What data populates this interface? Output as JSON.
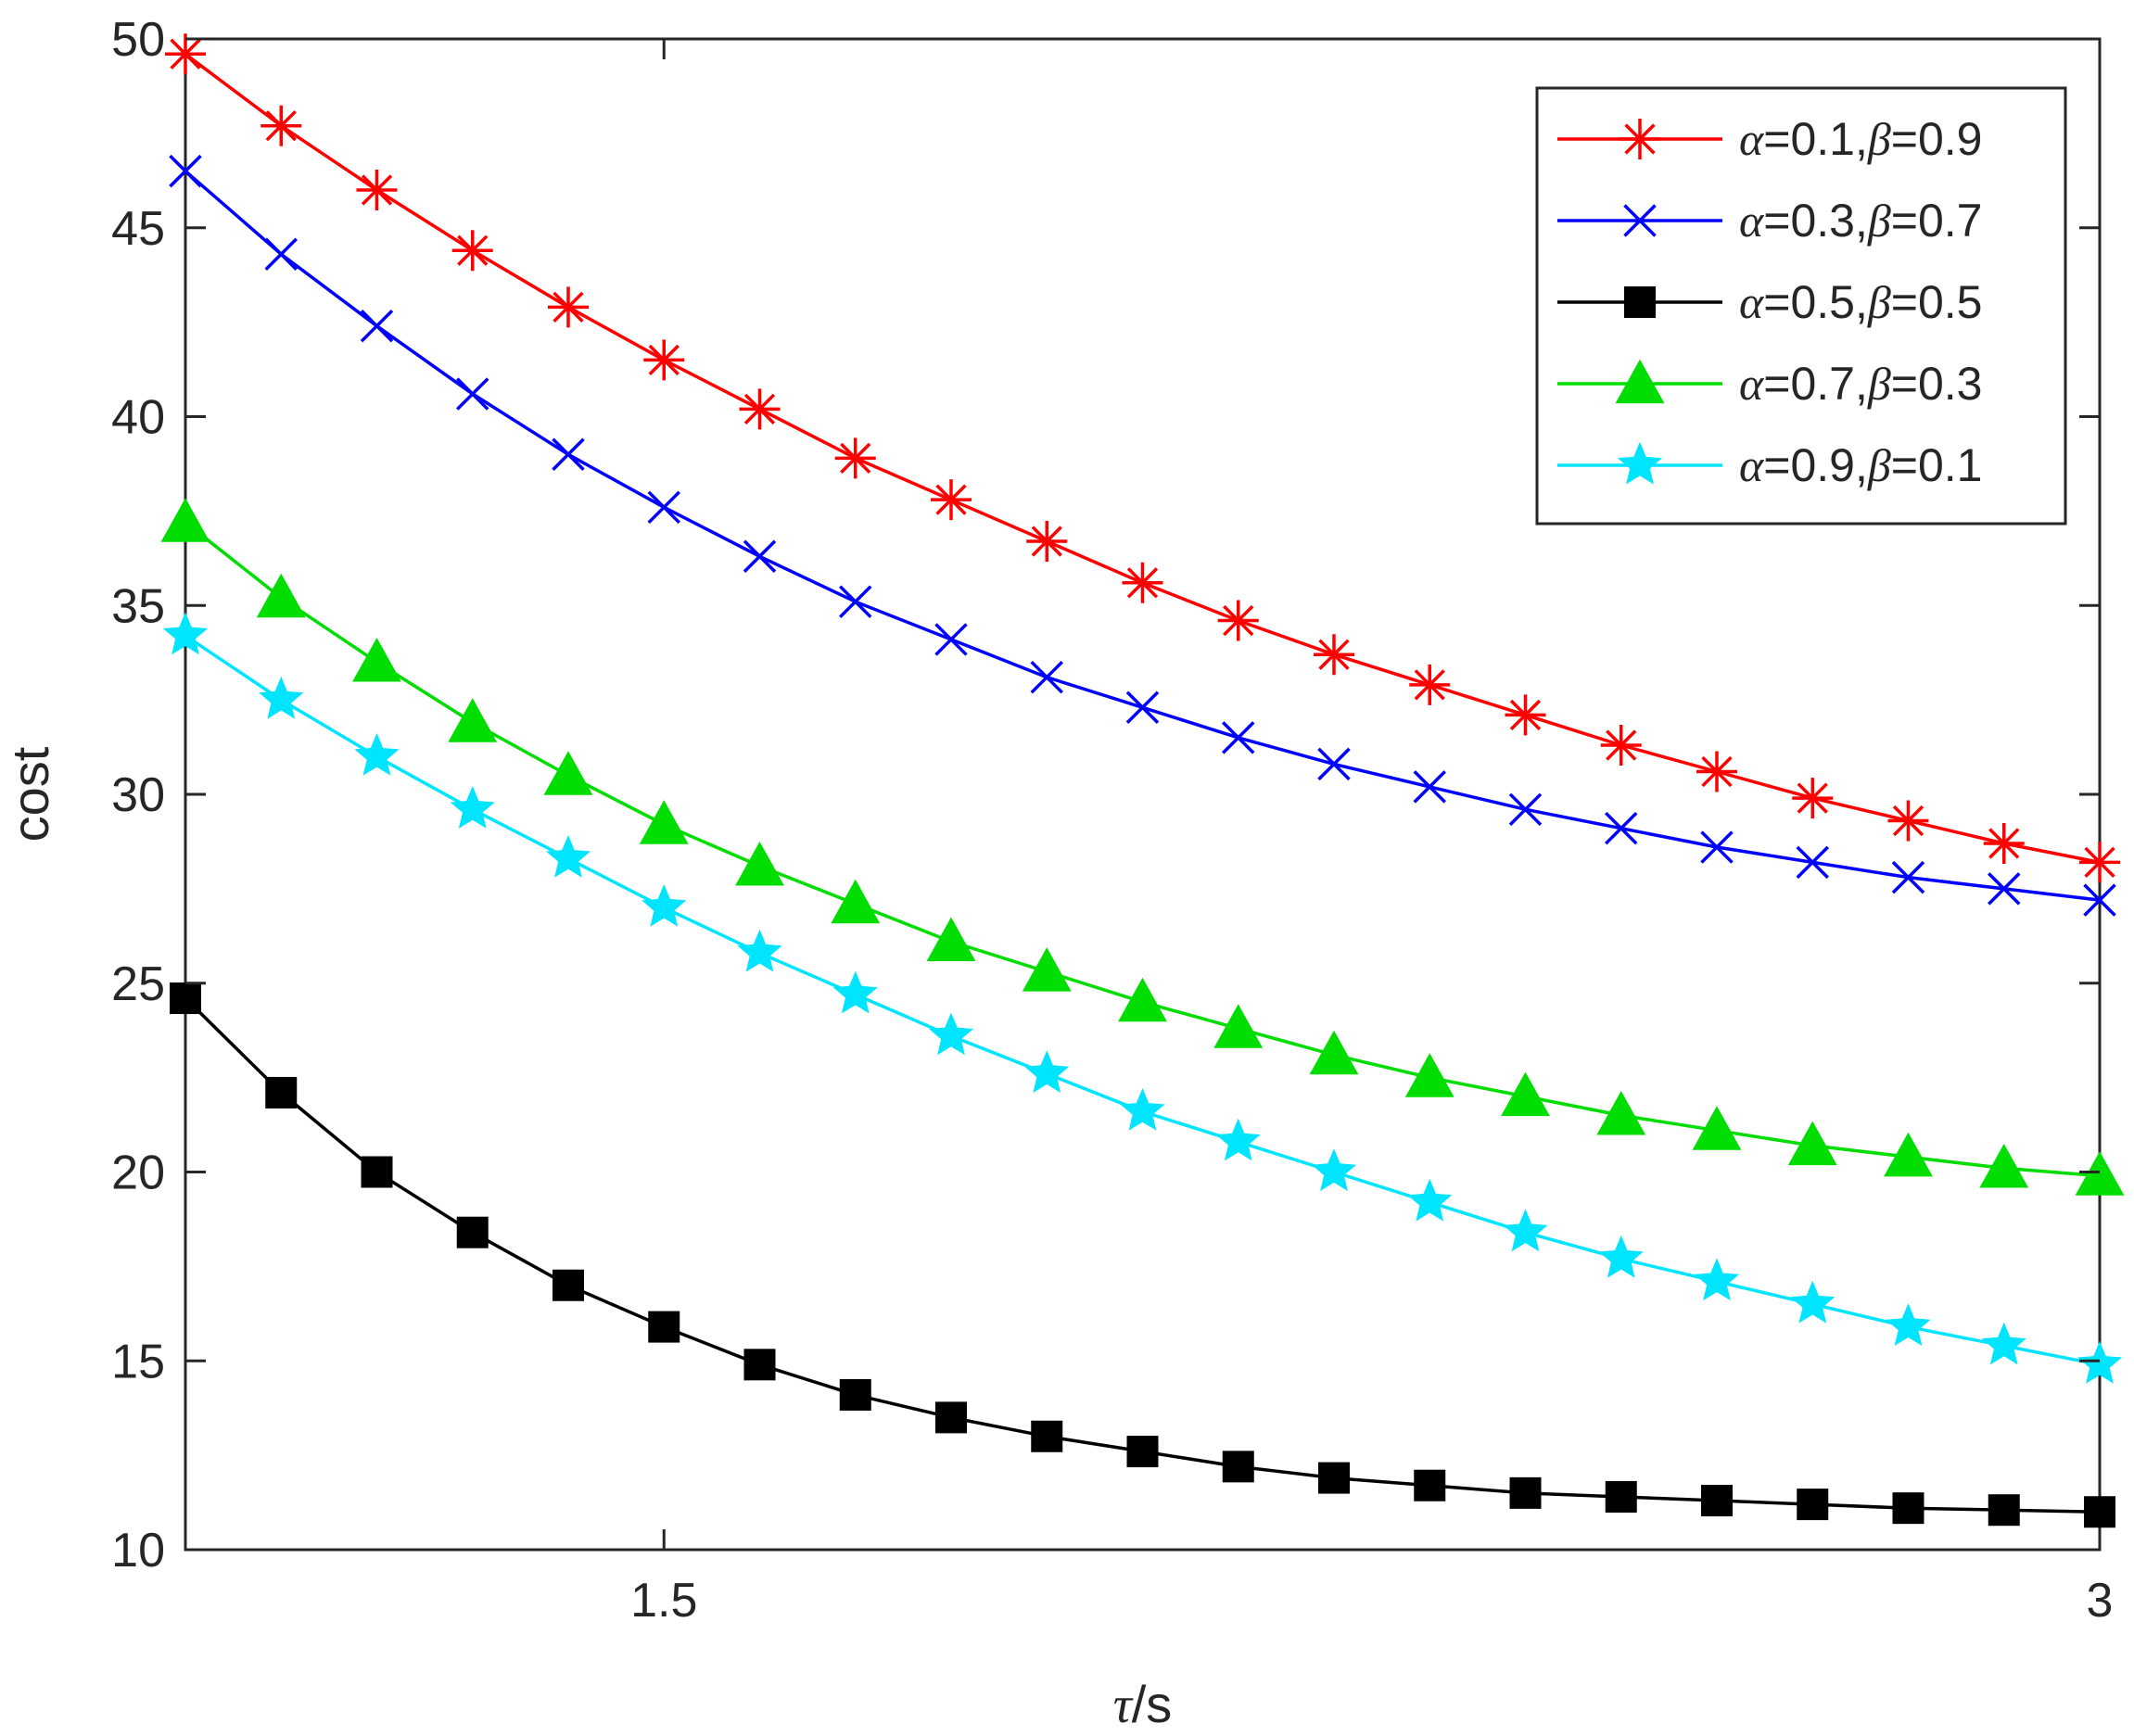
{
  "chart_data": {
    "type": "line",
    "xlabel_symbol": "τ",
    "xlabel_unit": "/s",
    "ylabel": "cost",
    "x": [
      1.0,
      1.1,
      1.2,
      1.3,
      1.4,
      1.5,
      1.6,
      1.7,
      1.8,
      1.9,
      2.0,
      2.1,
      2.2,
      2.3,
      2.4,
      2.5,
      2.6,
      2.7,
      2.8,
      2.9,
      3.0
    ],
    "xlim": [
      1.0,
      3.0
    ],
    "ylim": [
      10,
      50
    ],
    "xticks": [
      1.5,
      3
    ],
    "xtick_labels": [
      "1.5",
      "3"
    ],
    "yticks": [
      10,
      15,
      20,
      25,
      30,
      35,
      40,
      45,
      50
    ],
    "ytick_labels": [
      "10",
      "15",
      "20",
      "25",
      "30",
      "35",
      "40",
      "45",
      "50"
    ],
    "grid": false,
    "legend_position": "top-right",
    "series": [
      {
        "name": "α=0.1,β=0.9",
        "alpha_label": "=0.1,",
        "beta_label": "=0.9",
        "color": "#ff0000",
        "marker": "asterisk",
        "values": [
          49.6,
          47.7,
          46.0,
          44.4,
          42.9,
          41.5,
          40.2,
          38.9,
          37.8,
          36.7,
          35.6,
          34.6,
          33.7,
          32.9,
          32.1,
          31.3,
          30.6,
          29.9,
          29.3,
          28.7,
          28.2
        ]
      },
      {
        "name": "α=0.3,β=0.7",
        "alpha_label": "=0.3,",
        "beta_label": "=0.7",
        "color": "#0000ff",
        "marker": "x",
        "values": [
          46.5,
          44.3,
          42.4,
          40.6,
          39.0,
          37.6,
          36.3,
          35.1,
          34.1,
          33.1,
          32.3,
          31.5,
          30.8,
          30.2,
          29.6,
          29.1,
          28.6,
          28.2,
          27.8,
          27.5,
          27.2
        ]
      },
      {
        "name": "α=0.5,β=0.5",
        "alpha_label": "=0.5,",
        "beta_label": "=0.5",
        "color": "#000000",
        "marker": "square",
        "values": [
          24.6,
          22.1,
          20.0,
          18.4,
          17.0,
          15.9,
          14.9,
          14.1,
          13.5,
          13.0,
          12.6,
          12.2,
          11.9,
          11.7,
          11.5,
          11.4,
          11.3,
          11.2,
          11.1,
          11.05,
          11.0
        ]
      },
      {
        "name": "α=0.7,β=0.3",
        "alpha_label": "=0.7,",
        "beta_label": "=0.3",
        "color": "#00dd00",
        "marker": "triangle",
        "values": [
          37.2,
          35.2,
          33.5,
          31.9,
          30.5,
          29.2,
          28.1,
          27.1,
          26.1,
          25.3,
          24.5,
          23.8,
          23.1,
          22.5,
          22.0,
          21.5,
          21.1,
          20.7,
          20.4,
          20.1,
          19.9
        ]
      },
      {
        "name": "α=0.9,β=0.1",
        "alpha_label": "=0.9,",
        "beta_label": "=0.1",
        "color": "#00e5ff",
        "marker": "pentagram",
        "values": [
          34.2,
          32.5,
          31.0,
          29.6,
          28.3,
          27.0,
          25.8,
          24.7,
          23.6,
          22.6,
          21.6,
          20.8,
          20.0,
          19.2,
          18.4,
          17.7,
          17.1,
          16.5,
          15.9,
          15.4,
          14.9
        ]
      }
    ]
  }
}
